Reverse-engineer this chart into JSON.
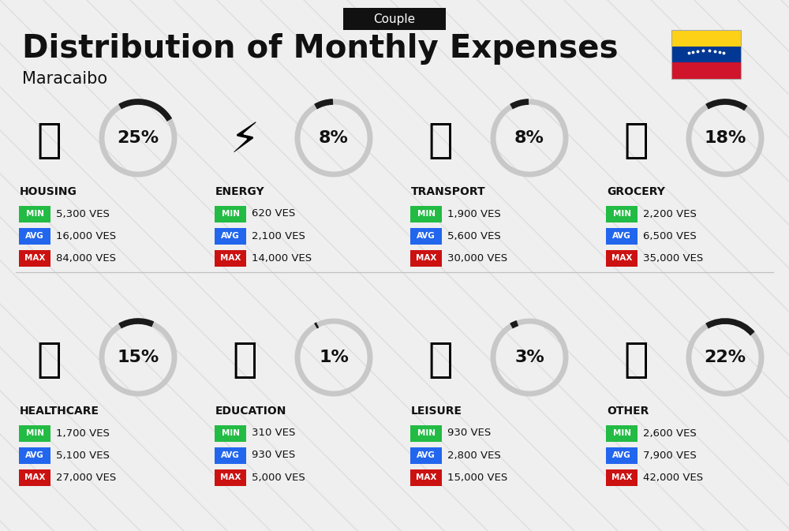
{
  "title": "Distribution of Monthly Expenses",
  "subtitle": "Couple",
  "city": "Maracaibo",
  "bg_color": "#efefef",
  "categories": [
    {
      "name": "HOUSING",
      "pct": 25,
      "min_val": "5,300 VES",
      "avg_val": "16,000 VES",
      "max_val": "84,000 VES",
      "row": 0,
      "col": 0
    },
    {
      "name": "ENERGY",
      "pct": 8,
      "min_val": "620 VES",
      "avg_val": "2,100 VES",
      "max_val": "14,000 VES",
      "row": 0,
      "col": 1
    },
    {
      "name": "TRANSPORT",
      "pct": 8,
      "min_val": "1,900 VES",
      "avg_val": "5,600 VES",
      "max_val": "30,000 VES",
      "row": 0,
      "col": 2
    },
    {
      "name": "GROCERY",
      "pct": 18,
      "min_val": "2,200 VES",
      "avg_val": "6,500 VES",
      "max_val": "35,000 VES",
      "row": 0,
      "col": 3
    },
    {
      "name": "HEALTHCARE",
      "pct": 15,
      "min_val": "1,700 VES",
      "avg_val": "5,100 VES",
      "max_val": "27,000 VES",
      "row": 1,
      "col": 0
    },
    {
      "name": "EDUCATION",
      "pct": 1,
      "min_val": "310 VES",
      "avg_val": "930 VES",
      "max_val": "5,000 VES",
      "row": 1,
      "col": 1
    },
    {
      "name": "LEISURE",
      "pct": 3,
      "min_val": "930 VES",
      "avg_val": "2,800 VES",
      "max_val": "15,000 VES",
      "row": 1,
      "col": 2
    },
    {
      "name": "OTHER",
      "pct": 22,
      "min_val": "2,600 VES",
      "avg_val": "7,900 VES",
      "max_val": "42,000 VES",
      "row": 1,
      "col": 3
    }
  ],
  "min_color": "#22bb44",
  "avg_color": "#2266ee",
  "max_color": "#cc1111",
  "arc_dark": "#1a1a1a",
  "arc_light": "#c8c8c8",
  "flag_colors": [
    "#fcd116",
    "#003893",
    "#cf142b"
  ],
  "diag_line_color": "#d0d0d0",
  "sep_line_color": "#c0c0c0"
}
